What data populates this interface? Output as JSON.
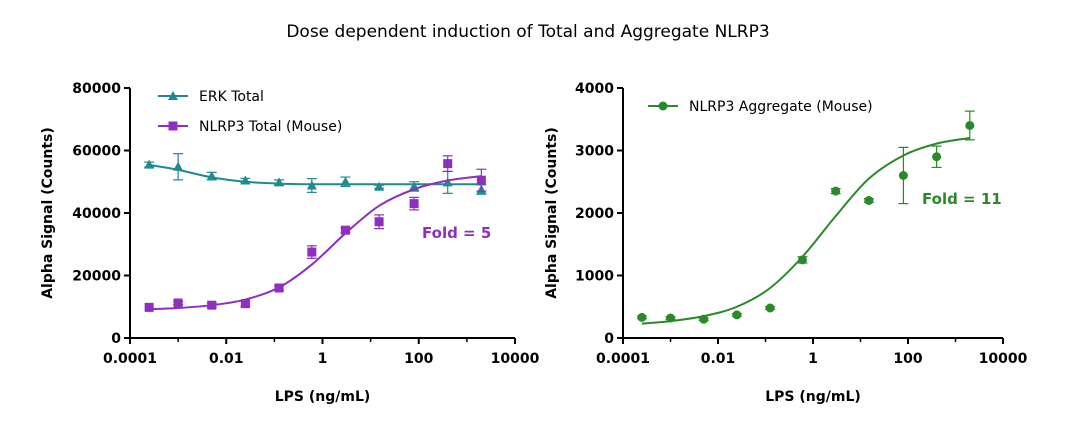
{
  "title": "Dose dependent induction of Total and Aggregate NLRP3",
  "colors": {
    "teal": "#1f8a8f",
    "purple": "#8f2fbf",
    "green": "#2a8a2a"
  },
  "chart_data": [
    {
      "type": "scatter",
      "xlabel": "LPS (ng/mL)",
      "ylabel": "Alpha Signal (Counts)",
      "x_scale": "log",
      "xlim": [
        0.0001,
        10000
      ],
      "ylim": [
        0,
        80000
      ],
      "x_ticks": [
        "0.0001",
        "0.01",
        "1",
        "100",
        "10000"
      ],
      "y_ticks": [
        "0",
        "20000",
        "40000",
        "60000",
        "80000"
      ],
      "legend_position": "top-left",
      "annotation": {
        "text": "Fold = 5",
        "color": "#8f2fbf"
      },
      "series": [
        {
          "name": "ERK Total",
          "color": "#1f8a8f",
          "marker": "triangle",
          "x": [
            0.00025,
            0.001,
            0.005,
            0.025,
            0.125,
            0.6,
            3,
            15,
            80,
            400,
            2000
          ],
          "y": [
            55500,
            54800,
            51800,
            50400,
            49800,
            48800,
            50000,
            48400,
            48500,
            49800,
            47500
          ],
          "err": [
            800,
            4200,
            1200,
            700,
            800,
            2200,
            1500,
            500,
            1500,
            3500,
            1500
          ],
          "fit_y": [
            55400,
            53800,
            51400,
            50000,
            49400,
            49200,
            49200,
            49200,
            49200,
            49200,
            49200
          ]
        },
        {
          "name": "NLRP3 Total (Mouse)",
          "color": "#8f2fbf",
          "marker": "square",
          "x": [
            0.00025,
            0.001,
            0.005,
            0.025,
            0.125,
            0.6,
            3,
            15,
            80,
            400,
            2000
          ],
          "y": [
            9800,
            11200,
            10500,
            11000,
            16000,
            27500,
            34500,
            37200,
            43000,
            55800,
            50500
          ],
          "err": [
            300,
            500,
            700,
            900,
            700,
            2000,
            800,
            2200,
            2000,
            2500,
            3500
          ],
          "fit_y": [
            9200,
            9600,
            10500,
            12300,
            16200,
            23500,
            33500,
            42300,
            47600,
            50400,
            51800
          ]
        }
      ]
    },
    {
      "type": "scatter",
      "xlabel": "LPS (ng/mL)",
      "ylabel": "Alpha Signal (Counts)",
      "x_scale": "log",
      "xlim": [
        0.0001,
        10000
      ],
      "ylim": [
        0,
        4000
      ],
      "x_ticks": [
        "0.0001",
        "0.01",
        "1",
        "100",
        "10000"
      ],
      "y_ticks": [
        "0",
        "1000",
        "2000",
        "3000",
        "4000"
      ],
      "legend_position": "top-left",
      "annotation": {
        "text": "Fold = 11",
        "color": "#2a8a2a"
      },
      "series": [
        {
          "name": "NLRP3 Aggregate (Mouse)",
          "color": "#2a8a2a",
          "marker": "circle",
          "x": [
            0.00025,
            0.001,
            0.005,
            0.025,
            0.125,
            0.6,
            3,
            15,
            80,
            400,
            2000
          ],
          "y": [
            330,
            320,
            300,
            370,
            480,
            1250,
            2350,
            2200,
            2600,
            2900,
            3400
          ],
          "err": [
            20,
            20,
            20,
            20,
            20,
            50,
            40,
            30,
            450,
            170,
            230
          ],
          "fit_y": [
            230,
            270,
            350,
            500,
            800,
            1300,
            1950,
            2550,
            2920,
            3110,
            3200
          ]
        }
      ]
    }
  ]
}
